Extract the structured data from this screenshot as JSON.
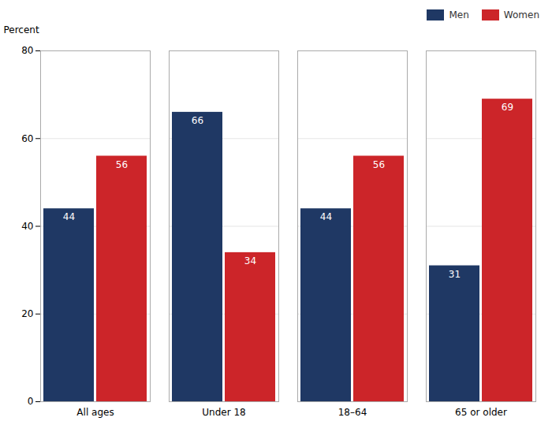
{
  "chart_data": {
    "type": "bar",
    "categories": [
      "All ages",
      "Under 18",
      "18–64",
      "65 or older"
    ],
    "series": [
      {
        "name": "Men",
        "color": "#1f3864",
        "values": [
          44,
          66,
          44,
          31
        ]
      },
      {
        "name": "Women",
        "color": "#cc2529",
        "values": [
          56,
          34,
          56,
          69
        ]
      }
    ],
    "ylabel": "Percent",
    "ylim": [
      0,
      80
    ],
    "yticks": [
      0,
      20,
      40,
      60,
      80
    ],
    "grid": true,
    "legend": "upper right",
    "data_labels": true
  }
}
